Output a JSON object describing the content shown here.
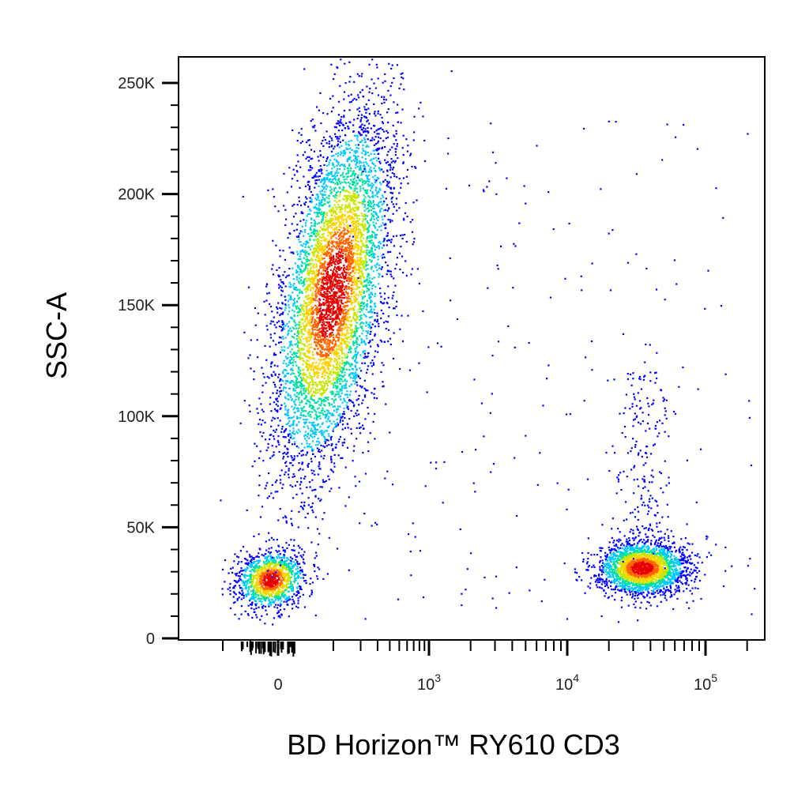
{
  "chart_data": {
    "type": "scatter",
    "style": "pseudocolor density dot plot",
    "xlabel": "BD Horizon™ RY610 CD3",
    "ylabel": "SSC-A",
    "x_scale": "biexponential",
    "x_ticks": [
      {
        "value": 0,
        "base": "0",
        "exp": ""
      },
      {
        "value": 1000,
        "base": "10",
        "exp": "3"
      },
      {
        "value": 10000,
        "base": "10",
        "exp": "4"
      },
      {
        "value": 100000,
        "base": "10",
        "exp": "5"
      }
    ],
    "y_scale": "linear",
    "ylim": [
      0,
      262144
    ],
    "y_ticks": [
      {
        "value": 0,
        "label": "0"
      },
      {
        "value": 50000,
        "label": "50K"
      },
      {
        "value": 100000,
        "label": "100K"
      },
      {
        "value": 150000,
        "label": "150K"
      },
      {
        "value": 200000,
        "label": "200K"
      },
      {
        "value": 250000,
        "label": "250K"
      }
    ],
    "populations": [
      {
        "description": "CD3-negative debris / low scatter",
        "x_center": 0,
        "y_center": 30000,
        "relative_events": 0.13
      },
      {
        "description": "CD3-negative high side-scatter cells",
        "x_center": 200,
        "y_center": 155000,
        "relative_events": 0.58
      },
      {
        "description": "CD3-positive lymphocytes",
        "x_center": 25000,
        "y_center": 33000,
        "relative_events": 0.24
      }
    ],
    "colormap": [
      "#0000ff",
      "#00c8ff",
      "#00e0a0",
      "#c8e600",
      "#ffd200",
      "#ff6400",
      "#e60000"
    ],
    "grid": false,
    "legend": "none"
  }
}
